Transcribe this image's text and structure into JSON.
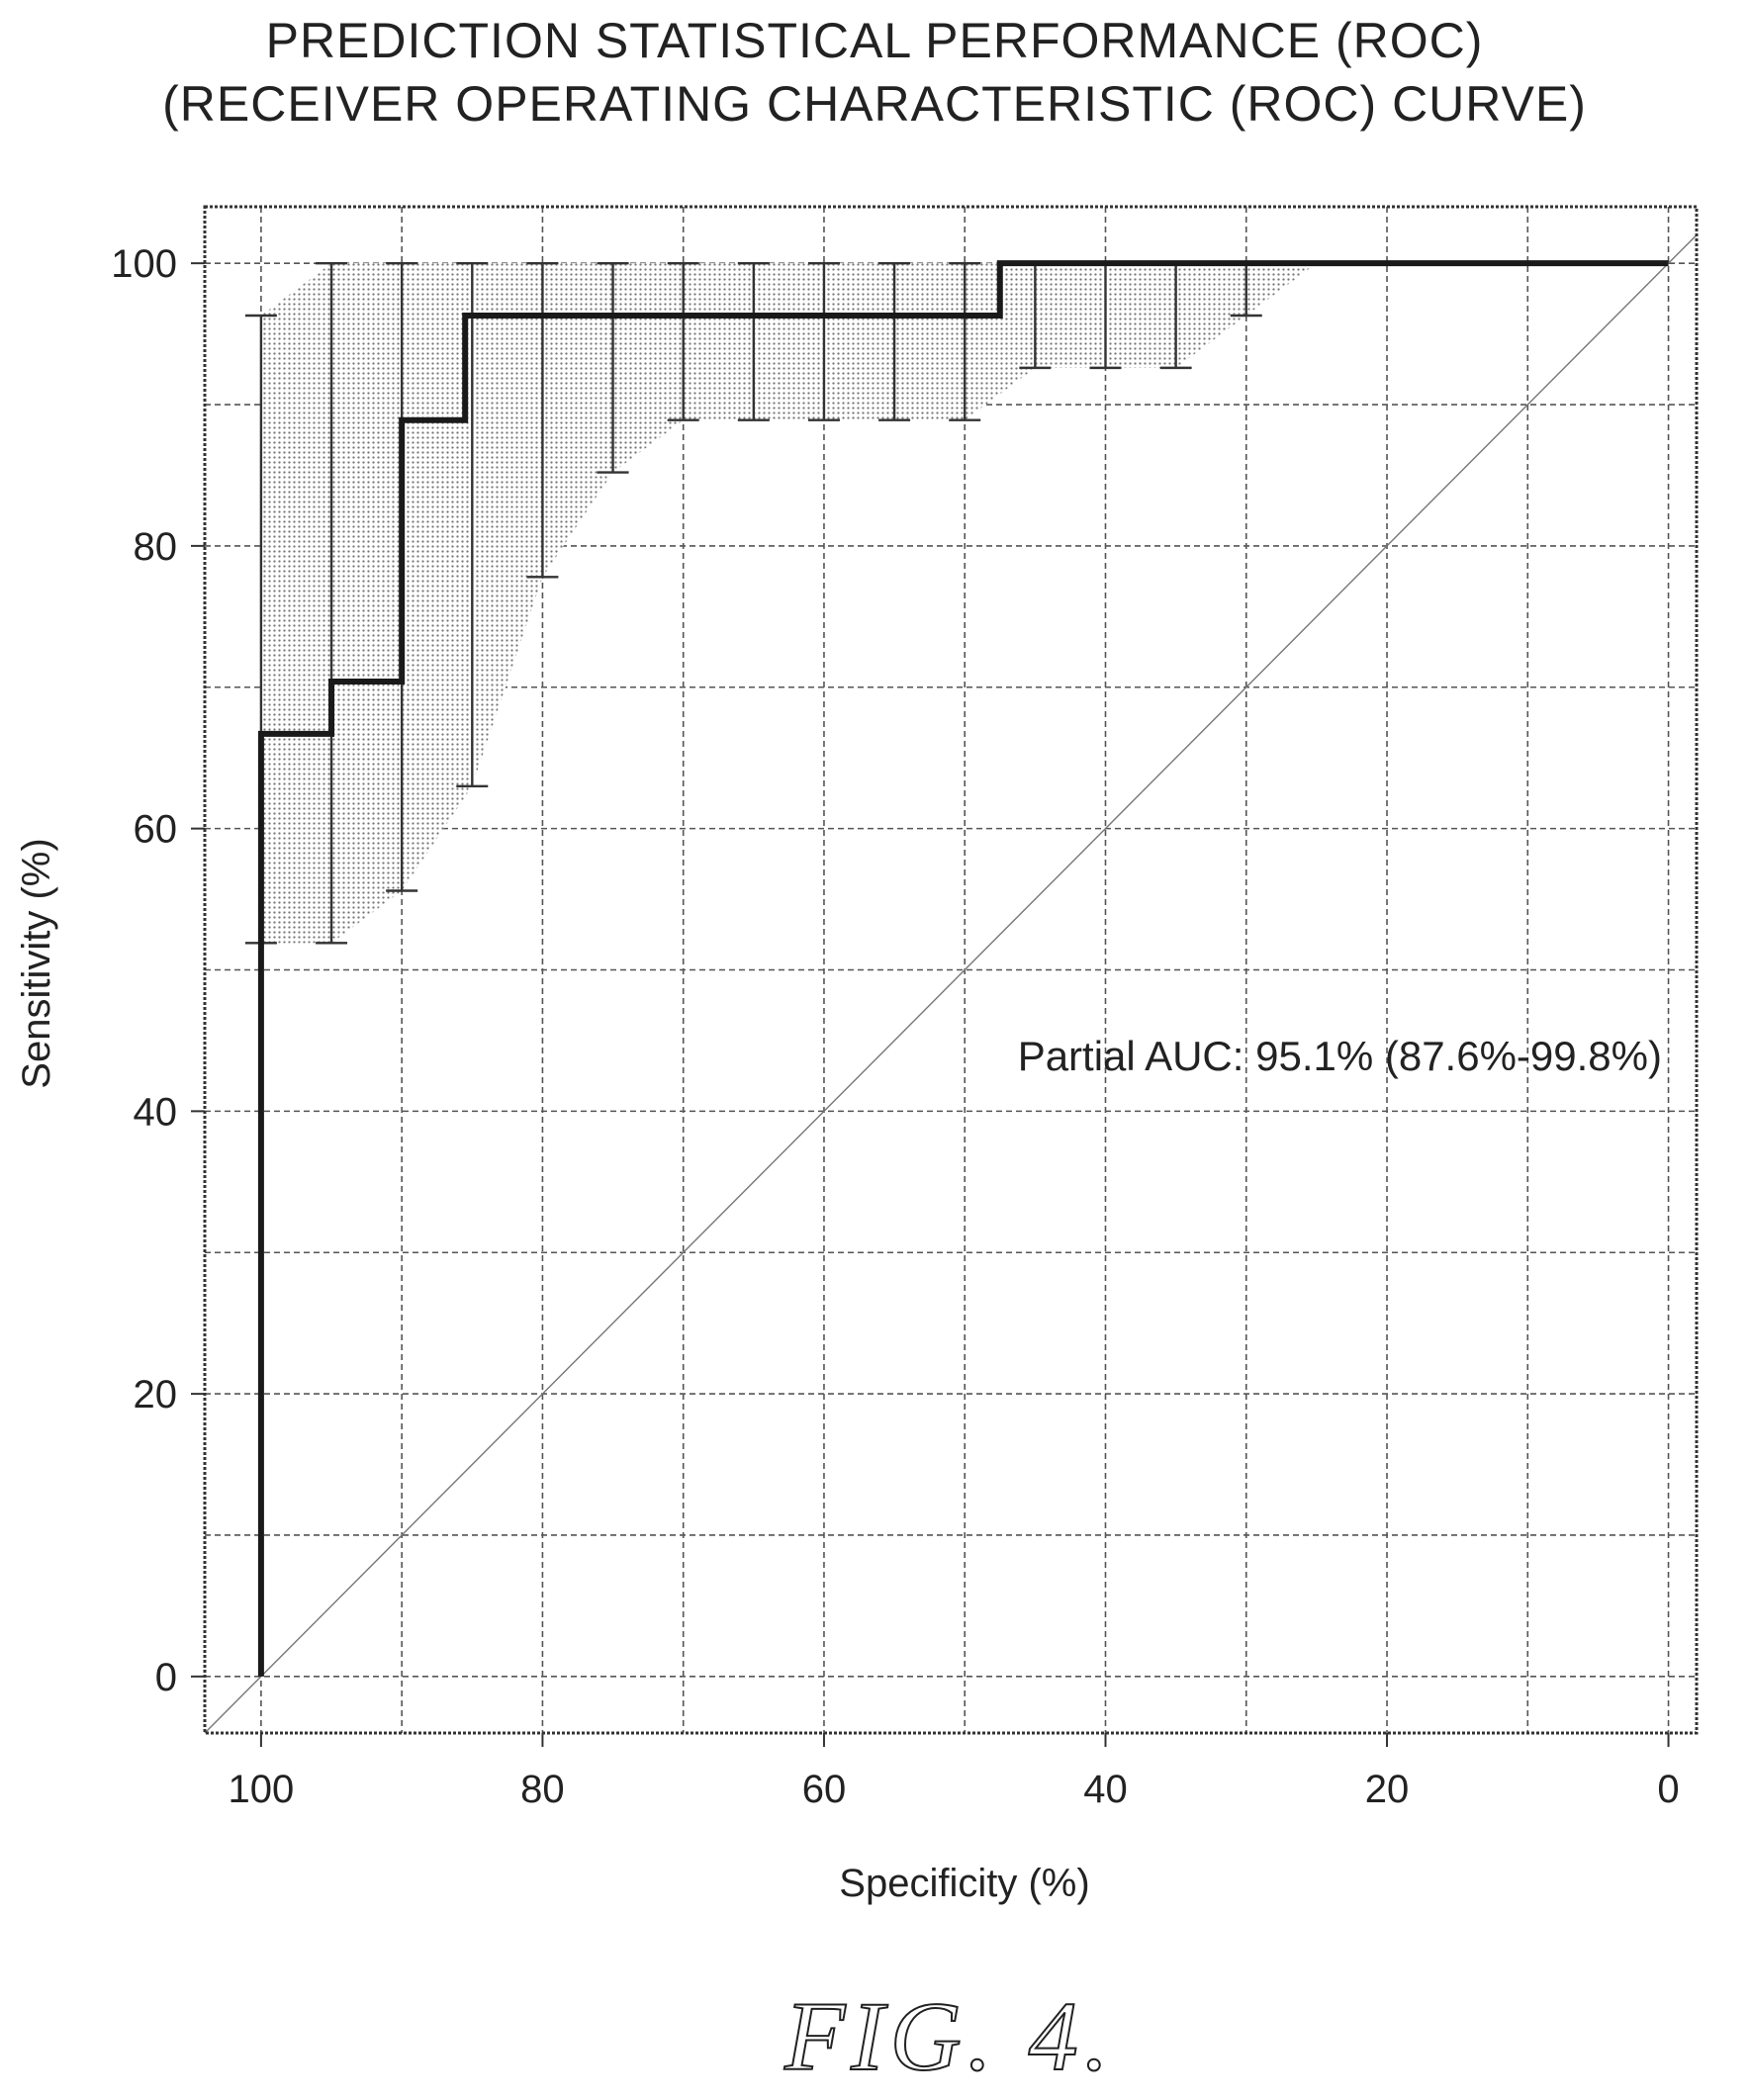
{
  "title_line1": "PREDICTION STATISTICAL PERFORMANCE (ROC)",
  "title_line2": "(RECEIVER OPERATING CHARACTERISTIC (ROC) CURVE)",
  "figure_label": "FIG. 4.",
  "chart_data": {
    "type": "line",
    "title": "PREDICTION STATISTICAL PERFORMANCE (ROC)",
    "subtitle": "(RECEIVER OPERATING CHARACTERISTIC (ROC) CURVE)",
    "xlabel": "Specificity (%)",
    "ylabel": "Sensitivity (%)",
    "xlim": [
      104,
      -2
    ],
    "ylim": [
      -4,
      104
    ],
    "x_reversed": true,
    "x_ticks": [
      100,
      80,
      60,
      40,
      20,
      0
    ],
    "y_ticks": [
      0,
      20,
      40,
      60,
      80,
      100
    ],
    "grid": true,
    "grid_step": 10,
    "annotation": "Partial AUC: 95.1% (87.6%-99.8%)",
    "series": [
      {
        "style": "step",
        "specificity": [
          100,
          100,
          95,
          95,
          90,
          90,
          85.5,
          85.5,
          47.5,
          47.5,
          0
        ],
        "sensitivity": [
          0,
          66.7,
          66.7,
          70.4,
          70.4,
          88.9,
          88.9,
          96.3,
          96.3,
          100,
          100
        ]
      },
      {
        "style": "reference",
        "specificity": [
          104,
          -2
        ],
        "sensitivity": [
          -4,
          102
        ]
      }
    ],
    "confidence_band": {
      "specificity": [
        100,
        95,
        90,
        85,
        80,
        75,
        70,
        65,
        60,
        55,
        50,
        45,
        40,
        35,
        30,
        25
      ],
      "upper": [
        96.3,
        100,
        100,
        100,
        100,
        100,
        100,
        100,
        100,
        100,
        100,
        100,
        100,
        100,
        100,
        100
      ],
      "lower": [
        51.9,
        51.9,
        55.6,
        63,
        77.8,
        85.2,
        88.9,
        88.9,
        88.9,
        88.9,
        88.9,
        92.6,
        92.6,
        92.6,
        96.3,
        100
      ]
    }
  }
}
